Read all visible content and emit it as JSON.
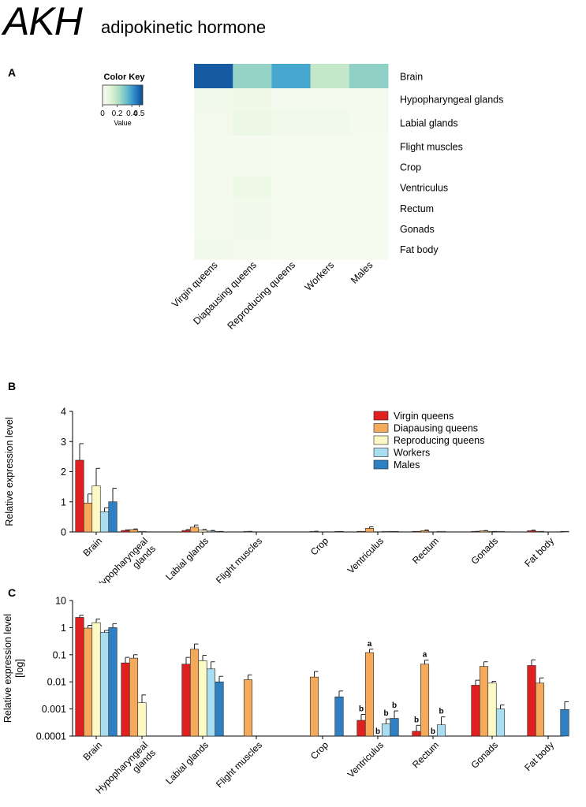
{
  "header": {
    "title": "AKH",
    "subtitle": "adipokinetic hormone"
  },
  "panels": {
    "a": "A",
    "b": "B",
    "c": "C"
  },
  "colors": {
    "virgin": "#e02020",
    "diapausing": "#f4aa5c",
    "reproducing": "#fdf9c4",
    "workers": "#a9ddef",
    "males": "#2f80c2"
  },
  "chart_data": [
    {
      "type": "heatmap",
      "color_key": {
        "title": "Color Key",
        "ticks": [
          "0",
          "0.2",
          "0.4",
          "0.5"
        ],
        "tick_values": [
          0,
          0.2,
          0.4,
          0.5
        ],
        "xlabel": "Value",
        "range": [
          0,
          0.55
        ]
      },
      "columns": [
        "Virgin queens",
        "Diapausing queens",
        "Reproducing queens",
        "Workers",
        "Males"
      ],
      "rows": [
        "Brain",
        "Hypopharyngeal glands",
        "Labial glands",
        "Flight muscles",
        "Crop",
        "Ventriculus",
        "Rectum",
        "Gonads",
        "Fat body"
      ],
      "values": [
        [
          0.52,
          0.26,
          0.38,
          0.18,
          0.27
        ],
        [
          0.03,
          0.04,
          0.01,
          0.01,
          0.01
        ],
        [
          0.02,
          0.06,
          0.03,
          0.03,
          0.01
        ],
        [
          0.01,
          0.01,
          0.005,
          0.005,
          0.005
        ],
        [
          0.01,
          0.02,
          0.005,
          0.005,
          0.005
        ],
        [
          0.01,
          0.05,
          0.005,
          0.005,
          0.005
        ],
        [
          0.01,
          0.03,
          0.005,
          0.005,
          0.005
        ],
        [
          0.01,
          0.03,
          0.005,
          0.005,
          0.005
        ],
        [
          0.03,
          0.02,
          0.005,
          0.005,
          0.005
        ]
      ]
    },
    {
      "type": "bar",
      "ylabel": "Relative expression level",
      "ylim": [
        0,
        4
      ],
      "yticks": [
        "0",
        "1",
        "2",
        "3",
        "4"
      ],
      "tick_values": [
        0,
        1,
        2,
        3,
        4
      ],
      "categories": [
        "Brain",
        "Hypopharyngeal glands",
        "Labial glands",
        "Flight muscles",
        "Crop",
        "Ventriculus",
        "Rectum",
        "Gonads",
        "Fat body"
      ],
      "series": [
        {
          "name": "Virgin queens",
          "values": [
            2.38,
            0.05,
            0.05,
            0,
            0,
            0.0004,
            0.00015,
            0.008,
            0.04
          ],
          "errors": [
            0.55,
            0.02,
            0.03,
            0,
            0,
            0,
            0,
            0.01,
            0.02
          ]
        },
        {
          "name": "Diapausing queens",
          "values": [
            0.96,
            0.08,
            0.16,
            0.012,
            0.015,
            0.12,
            0.045,
            0.037,
            0.009
          ],
          "errors": [
            0.3,
            0.02,
            0.07,
            0.005,
            0.008,
            0.05,
            0.02,
            0.01,
            0.003
          ]
        },
        {
          "name": "Reproducing queens",
          "values": [
            1.53,
            0.002,
            0.06,
            0,
            0,
            0,
            0,
            0.009,
            0
          ],
          "errors": [
            0.58,
            0,
            0.02,
            0,
            0,
            0,
            0,
            0.002,
            0
          ]
        },
        {
          "name": "Workers",
          "values": [
            0.67,
            0,
            0.03,
            0,
            0,
            0.0003,
            0.00025,
            0.001,
            0
          ],
          "errors": [
            0.13,
            0,
            0.02,
            0,
            0,
            0,
            0,
            0,
            0
          ]
        },
        {
          "name": "Males",
          "values": [
            1.0,
            0,
            0.01,
            0,
            0.003,
            0.0004,
            0,
            0,
            0.001
          ],
          "errors": [
            0.45,
            0,
            0.005,
            0,
            0.002,
            0,
            0,
            0,
            0
          ]
        }
      ]
    },
    {
      "type": "bar",
      "ylabel": "Relative expression level",
      "ylabel2": "[log]",
      "scale": "log",
      "ylim": [
        0.0001,
        10
      ],
      "yticks": [
        "10",
        "1",
        "0.1",
        "0.01",
        "0.001",
        "0.0001"
      ],
      "tick_values": [
        10,
        1,
        0.1,
        0.01,
        0.001,
        0.0001
      ],
      "categories": [
        "Brain",
        "Hypopharyngeal glands",
        "Labial glands",
        "Flight muscles",
        "Crop",
        "Ventriculus",
        "Rectum",
        "Gonads",
        "Fat body"
      ],
      "series": [
        {
          "name": "Virgin queens",
          "values": [
            2.38,
            0.05,
            0.045,
            null,
            null,
            0.00038,
            0.00015,
            0.0075,
            0.04
          ],
          "errors": [
            0.5,
            0.03,
            0.035,
            null,
            null,
            0.00025,
            0.0001,
            0.004,
            0.025
          ],
          "letters": [
            null,
            null,
            null,
            null,
            null,
            "b",
            "b",
            null,
            null
          ]
        },
        {
          "name": "Diapausing queens",
          "values": [
            0.96,
            0.075,
            0.16,
            0.012,
            0.015,
            0.12,
            0.045,
            0.037,
            0.009
          ],
          "errors": [
            0.25,
            0.025,
            0.09,
            0.006,
            0.009,
            0.04,
            0.018,
            0.018,
            0.005
          ],
          "letters": [
            null,
            null,
            null,
            null,
            null,
            "a",
            "a",
            null,
            null
          ]
        },
        {
          "name": "Reproducing queens",
          "values": [
            1.53,
            0.0017,
            0.06,
            null,
            null,
            null,
            null,
            0.009,
            null
          ],
          "errors": [
            0.55,
            0.0016,
            0.035,
            null,
            null,
            null,
            null,
            0.0015,
            null
          ],
          "letters": [
            null,
            null,
            null,
            null,
            null,
            "b",
            "b",
            null,
            null
          ]
        },
        {
          "name": "Workers",
          "values": [
            0.67,
            null,
            0.03,
            null,
            null,
            0.00028,
            0.00026,
            0.001,
            null
          ],
          "errors": [
            0.12,
            null,
            0.025,
            null,
            null,
            0.00015,
            0.00025,
            0.0004,
            null
          ],
          "letters": [
            null,
            null,
            null,
            null,
            null,
            "b",
            "b",
            null,
            null
          ]
        },
        {
          "name": "Males",
          "values": [
            1.0,
            null,
            0.01,
            null,
            0.0028,
            0.00045,
            null,
            null,
            0.00095
          ],
          "errors": [
            0.4,
            null,
            0.006,
            null,
            0.0018,
            0.0004,
            null,
            null,
            0.0009
          ],
          "letters": [
            null,
            null,
            null,
            null,
            null,
            "b",
            null,
            null,
            null
          ]
        }
      ]
    }
  ]
}
